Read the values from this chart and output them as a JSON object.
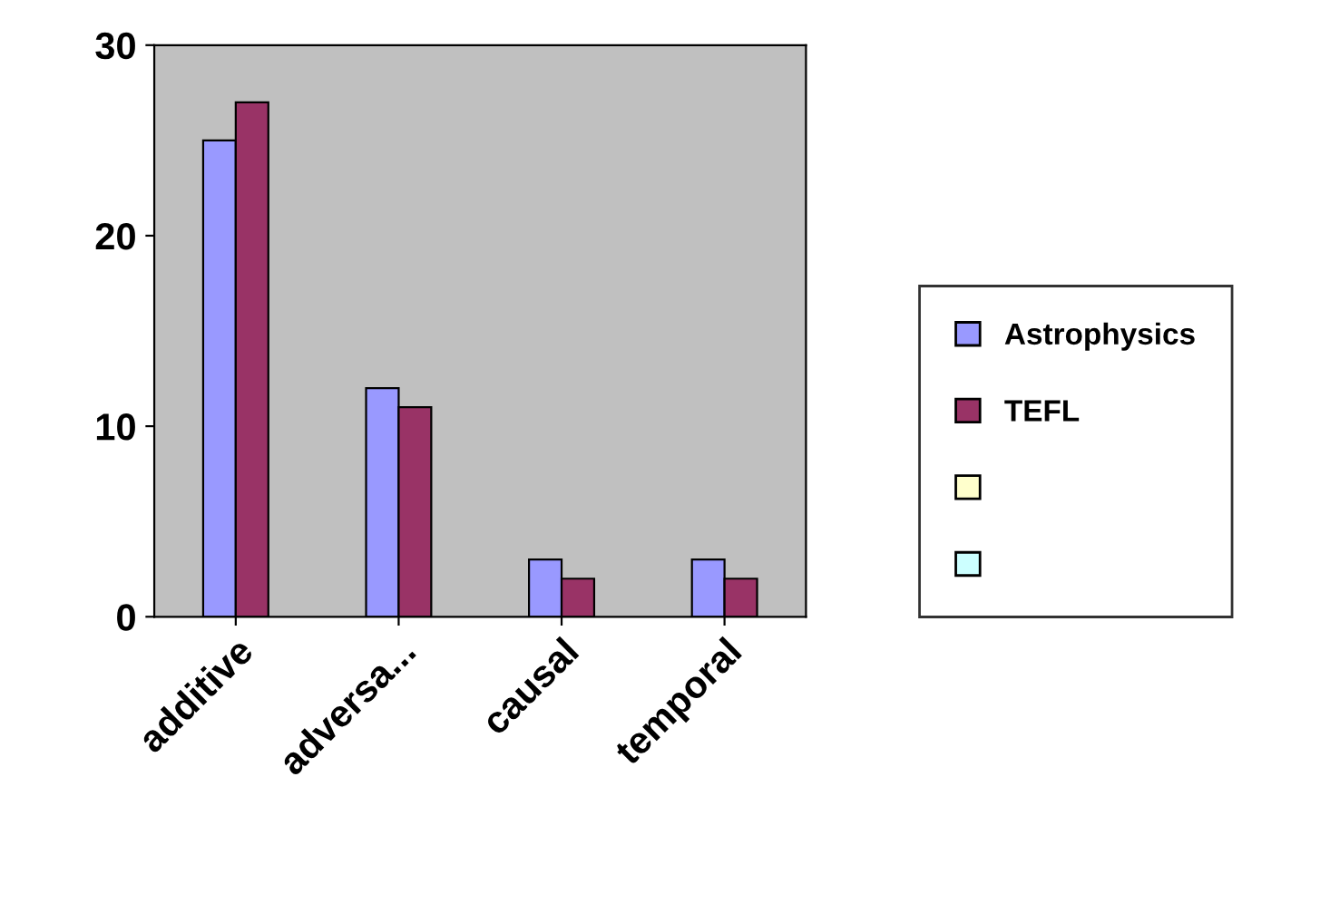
{
  "chart_data": {
    "type": "bar",
    "categories": [
      "additive",
      "adversa...",
      "causal",
      "temporal"
    ],
    "series": [
      {
        "name": "Astrophysics",
        "color": "#9999ff",
        "values": [
          25,
          12,
          3,
          3
        ]
      },
      {
        "name": "TEFL",
        "color": "#993366",
        "values": [
          27,
          11,
          2,
          2
        ]
      },
      {
        "color": "#ffffcc",
        "values": [
          null,
          null,
          null,
          null
        ]
      },
      {
        "color": "#ccffff",
        "values": [
          null,
          null,
          null,
          null
        ]
      }
    ],
    "ylim": [
      0,
      30
    ],
    "yticks": [
      0,
      10,
      20,
      30
    ],
    "grid": false,
    "legend": "right"
  }
}
